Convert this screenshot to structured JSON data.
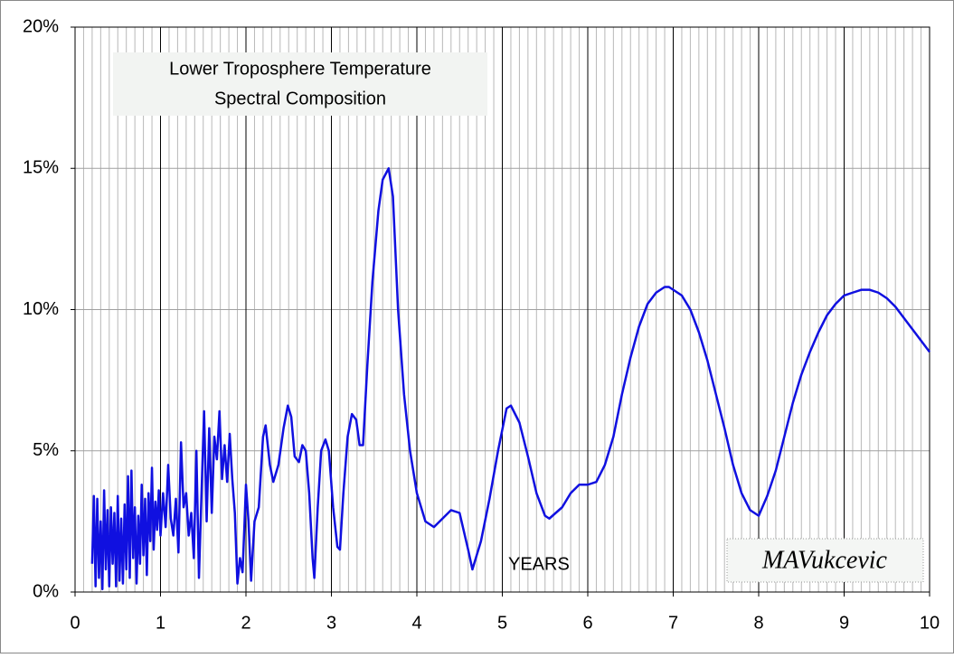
{
  "chart_data": {
    "type": "line",
    "title": [
      "Lower Troposphere Temperature",
      "Spectral Composition"
    ],
    "annotation": "YEARS",
    "signature": "MAVukcevic",
    "color": "#1010e0",
    "x": [
      0.2,
      0.22,
      0.24,
      0.26,
      0.28,
      0.3,
      0.32,
      0.34,
      0.36,
      0.38,
      0.4,
      0.42,
      0.44,
      0.46,
      0.48,
      0.5,
      0.52,
      0.54,
      0.56,
      0.58,
      0.6,
      0.62,
      0.64,
      0.66,
      0.68,
      0.7,
      0.72,
      0.74,
      0.76,
      0.78,
      0.8,
      0.82,
      0.84,
      0.86,
      0.88,
      0.9,
      0.92,
      0.94,
      0.96,
      0.98,
      1.0,
      1.03,
      1.06,
      1.09,
      1.12,
      1.15,
      1.18,
      1.21,
      1.24,
      1.27,
      1.3,
      1.33,
      1.36,
      1.39,
      1.42,
      1.45,
      1.48,
      1.51,
      1.54,
      1.57,
      1.6,
      1.63,
      1.66,
      1.69,
      1.72,
      1.75,
      1.78,
      1.81,
      1.84,
      1.87,
      1.9,
      1.93,
      1.96,
      1.98,
      2.0,
      2.03,
      2.06,
      2.1,
      2.15,
      2.2,
      2.23,
      2.28,
      2.32,
      2.38,
      2.44,
      2.49,
      2.53,
      2.57,
      2.62,
      2.66,
      2.7,
      2.74,
      2.78,
      2.8,
      2.84,
      2.88,
      2.93,
      2.97,
      3.02,
      3.07,
      3.1,
      3.14,
      3.19,
      3.24,
      3.29,
      3.33,
      3.37,
      3.42,
      3.48,
      3.55,
      3.6,
      3.67,
      3.72,
      3.78,
      3.85,
      3.92,
      4.0,
      4.1,
      4.2,
      4.3,
      4.4,
      4.5,
      4.6,
      4.65,
      4.75,
      4.85,
      4.95,
      5.05,
      5.1,
      5.2,
      5.3,
      5.4,
      5.5,
      5.55,
      5.7,
      5.8,
      5.9,
      6.0,
      6.1,
      6.2,
      6.3,
      6.4,
      6.5,
      6.6,
      6.7,
      6.8,
      6.9,
      6.95,
      7.1,
      7.2,
      7.3,
      7.4,
      7.5,
      7.6,
      7.7,
      7.8,
      7.9,
      8.0,
      8.1,
      8.2,
      8.3,
      8.4,
      8.5,
      8.6,
      8.7,
      8.8,
      8.9,
      9.0,
      9.1,
      9.2,
      9.3,
      9.4,
      9.5,
      9.6,
      9.7,
      9.8,
      9.9,
      10.0
    ],
    "values": [
      1.0,
      3.4,
      0.2,
      3.3,
      0.5,
      2.5,
      0.1,
      3.6,
      0.8,
      2.9,
      0.2,
      3.0,
      1.0,
      2.8,
      0.2,
      3.4,
      0.4,
      2.6,
      0.3,
      3.1,
      0.8,
      4.1,
      0.5,
      4.3,
      1.2,
      3.0,
      0.3,
      2.7,
      1.0,
      3.8,
      1.3,
      3.3,
      0.6,
      3.5,
      1.8,
      4.4,
      1.5,
      3.2,
      2.2,
      3.6,
      2.0,
      3.5,
      2.3,
      4.5,
      2.6,
      2.0,
      3.3,
      1.4,
      5.3,
      3.0,
      3.5,
      2.0,
      2.8,
      1.2,
      5.0,
      0.5,
      3.5,
      6.4,
      2.5,
      5.8,
      2.8,
      5.5,
      4.7,
      6.4,
      4.0,
      5.2,
      3.9,
      5.6,
      4.0,
      2.8,
      0.3,
      1.2,
      0.7,
      2.2,
      3.8,
      2.5,
      0.4,
      2.5,
      3.0,
      5.5,
      5.9,
      4.5,
      3.9,
      4.5,
      5.8,
      6.6,
      6.2,
      4.8,
      4.6,
      5.2,
      5.0,
      3.5,
      1.2,
      0.5,
      3.0,
      5.0,
      5.4,
      5.0,
      3.0,
      1.6,
      1.5,
      3.5,
      5.5,
      6.3,
      6.1,
      5.2,
      5.2,
      8.0,
      11.0,
      13.5,
      14.6,
      15.0,
      14.0,
      10.0,
      7.0,
      5.0,
      3.5,
      2.5,
      2.3,
      2.6,
      2.9,
      2.8,
      1.5,
      0.8,
      1.8,
      3.3,
      5.0,
      6.5,
      6.6,
      6.0,
      4.8,
      3.5,
      2.7,
      2.6,
      3.0,
      3.5,
      3.8,
      3.8,
      3.9,
      4.5,
      5.5,
      7.0,
      8.3,
      9.4,
      10.2,
      10.6,
      10.8,
      10.8,
      10.5,
      10.0,
      9.2,
      8.2,
      7.0,
      5.8,
      4.5,
      3.5,
      2.9,
      2.7,
      3.4,
      4.3,
      5.5,
      6.7,
      7.7,
      8.5,
      9.2,
      9.8,
      10.2,
      10.5,
      10.6,
      10.7,
      10.7,
      10.6,
      10.4,
      10.1,
      9.7,
      9.3,
      8.9,
      8.5
    ],
    "xlim": [
      0,
      10
    ],
    "xticks": [
      0,
      1,
      2,
      3,
      4,
      5,
      6,
      7,
      8,
      9,
      10
    ],
    "ylim": [
      0,
      20
    ],
    "yticks": [
      {
        "value": 0,
        "label": "0%"
      },
      {
        "value": 5,
        "label": "5%"
      },
      {
        "value": 10,
        "label": "10%"
      },
      {
        "value": 15,
        "label": "15%"
      },
      {
        "value": 20,
        "label": "20%"
      }
    ],
    "x_minor_grid_step": 0.1,
    "grid": true
  }
}
